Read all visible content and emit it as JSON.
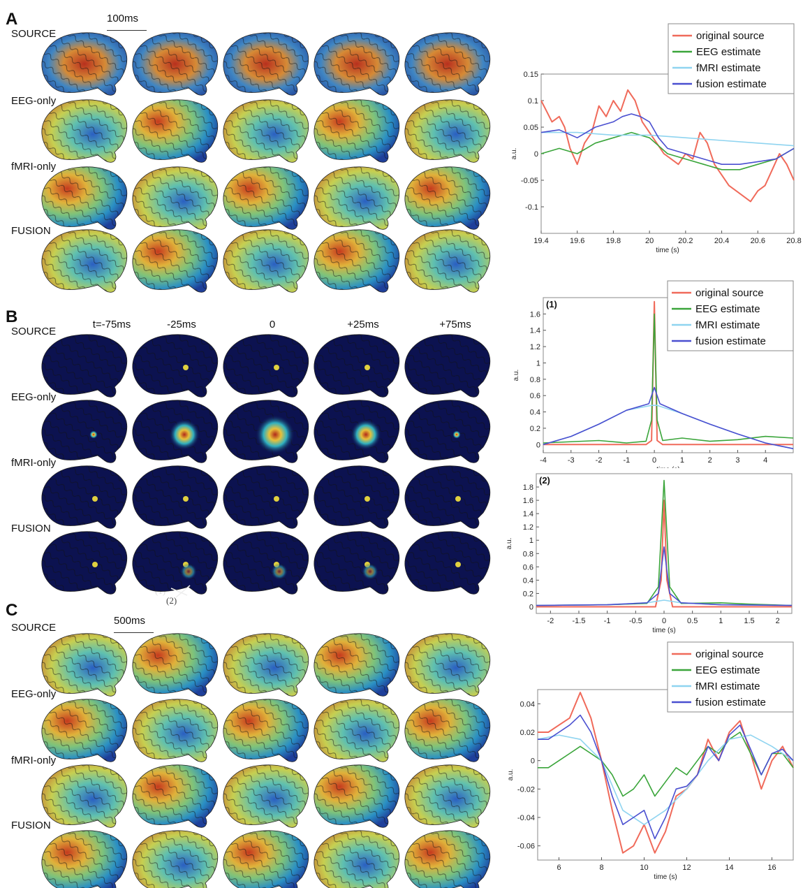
{
  "panels": {
    "A": {
      "letter": "A",
      "scale_label": "100ms",
      "rows": [
        "SOURCE",
        "EEG-only",
        "fMRI-only",
        "FUSION"
      ],
      "style": "mixed"
    },
    "B": {
      "letter": "B",
      "rows": [
        "SOURCE",
        "EEG-only",
        "fMRI-only",
        "FUSION"
      ],
      "time_labels": [
        "t=-75ms",
        "-25ms",
        "0",
        "+25ms",
        "+75ms"
      ],
      "arrow_labels": [
        "(1)",
        "(2)"
      ],
      "style": "dark"
    },
    "C": {
      "letter": "C",
      "scale_label": "500ms",
      "rows": [
        "SOURCE",
        "EEG-only",
        "fMRI-only",
        "FUSION"
      ],
      "style": "mixed"
    }
  },
  "legend_labels": [
    "original source",
    "EEG estimate",
    "fMRI estimate",
    "fusion estimate"
  ],
  "colors": {
    "original": "#f06a5a",
    "eeg": "#3aa53a",
    "fmri": "#8fd4f0",
    "fusion": "#4a4fd0",
    "brain_dark": "#0c1250"
  },
  "chart_data": [
    {
      "id": "A",
      "type": "line",
      "xlabel": "time (s)",
      "ylabel": "a.u.",
      "xlim": [
        19.4,
        20.8
      ],
      "ylim": [
        -0.15,
        0.15
      ],
      "xticks": [
        19.4,
        19.6,
        19.8,
        20,
        20.2,
        20.4,
        20.6,
        20.8
      ],
      "xtick_labels": [
        "19.4",
        "19.6",
        "19.8",
        "20",
        "20.2",
        "20.4",
        "20.6",
        "20.8"
      ],
      "yticks": [
        0.15,
        0.1,
        0.05,
        0,
        -0.05,
        -0.1
      ],
      "ytick_labels": [
        "0.15",
        "0.1",
        "0.05",
        "0",
        "-0.05",
        "-0.1"
      ],
      "legend": "top-right",
      "series": [
        {
          "name": "original source",
          "x": [
            19.4,
            19.43,
            19.46,
            19.5,
            19.53,
            19.56,
            19.6,
            19.64,
            19.68,
            19.72,
            19.76,
            19.8,
            19.84,
            19.88,
            19.92,
            19.96,
            20.0,
            20.04,
            20.08,
            20.12,
            20.16,
            20.2,
            20.24,
            20.28,
            20.32,
            20.36,
            20.4,
            20.44,
            20.48,
            20.52,
            20.56,
            20.6,
            20.64,
            20.68,
            20.72,
            20.76,
            20.8
          ],
          "y": [
            0.1,
            0.08,
            0.06,
            0.07,
            0.05,
            0.01,
            -0.02,
            0.02,
            0.04,
            0.09,
            0.07,
            0.1,
            0.08,
            0.12,
            0.1,
            0.06,
            0.04,
            0.02,
            0.0,
            -0.01,
            -0.02,
            0.0,
            -0.01,
            0.04,
            0.02,
            -0.02,
            -0.04,
            -0.06,
            -0.07,
            -0.08,
            -0.09,
            -0.07,
            -0.06,
            -0.03,
            0.0,
            -0.02,
            -0.05
          ]
        },
        {
          "name": "EEG estimate",
          "x": [
            19.4,
            19.5,
            19.6,
            19.7,
            19.8,
            19.9,
            20.0,
            20.1,
            20.2,
            20.3,
            20.4,
            20.5,
            20.6,
            20.7,
            20.8
          ],
          "y": [
            0.0,
            0.01,
            0.0,
            0.02,
            0.03,
            0.04,
            0.03,
            0.0,
            -0.01,
            -0.02,
            -0.03,
            -0.03,
            -0.02,
            -0.01,
            0.01
          ]
        },
        {
          "name": "fMRI estimate",
          "x": [
            19.4,
            19.6,
            19.8,
            20.0,
            20.2,
            20.4,
            20.6,
            20.8
          ],
          "y": [
            0.04,
            0.04,
            0.035,
            0.035,
            0.03,
            0.025,
            0.02,
            0.015
          ]
        },
        {
          "name": "fusion estimate",
          "x": [
            19.4,
            19.5,
            19.6,
            19.7,
            19.8,
            19.85,
            19.9,
            19.95,
            20.0,
            20.05,
            20.1,
            20.2,
            20.3,
            20.4,
            20.5,
            20.6,
            20.7,
            20.8
          ],
          "y": [
            0.04,
            0.045,
            0.03,
            0.05,
            0.06,
            0.07,
            0.075,
            0.07,
            0.06,
            0.03,
            0.01,
            0.0,
            -0.01,
            -0.02,
            -0.02,
            -0.015,
            -0.01,
            0.01
          ]
        }
      ]
    },
    {
      "id": "B1",
      "type": "line",
      "panel_label": "(1)",
      "xlabel": "time (s)",
      "ylabel": "a.u.",
      "xlim": [
        -4,
        5
      ],
      "ylim": [
        -0.1,
        1.8
      ],
      "xticks": [
        -4,
        -3,
        -2,
        -1,
        0,
        1,
        2,
        3,
        4
      ],
      "xtick_labels": [
        "-4",
        "-3",
        "-2",
        "-1",
        "0",
        "1",
        "2",
        "3",
        "4"
      ],
      "yticks": [
        0,
        0.2,
        0.4,
        0.6,
        0.8,
        1,
        1.2,
        1.4,
        1.6
      ],
      "ytick_labels": [
        "0",
        "0.2",
        "0.4",
        "0.6",
        "0.8",
        "1",
        "1.2",
        "1.4",
        "1.6"
      ],
      "legend": "top-right",
      "series": [
        {
          "name": "original source",
          "x": [
            -4,
            -0.3,
            -0.1,
            -0.05,
            0,
            0.05,
            0.1,
            0.3,
            5
          ],
          "y": [
            0,
            0,
            0.05,
            0.9,
            1.75,
            0.9,
            0.05,
            0,
            0
          ]
        },
        {
          "name": "EEG estimate",
          "x": [
            -4,
            -2,
            -1,
            -0.3,
            -0.1,
            0,
            0.1,
            0.3,
            1,
            2,
            3,
            4,
            5
          ],
          "y": [
            0.02,
            0.05,
            0.02,
            0.04,
            0.3,
            1.6,
            0.3,
            0.05,
            0.08,
            0.04,
            0.06,
            0.1,
            0.08
          ]
        },
        {
          "name": "fMRI estimate",
          "x": [
            -4,
            -3,
            -2,
            -1,
            -0.1,
            0.1,
            1,
            2,
            3,
            4,
            5
          ],
          "y": [
            0,
            0.1,
            0.25,
            0.42,
            0.48,
            0.48,
            0.38,
            0.25,
            0.13,
            0.02,
            -0.05
          ]
        },
        {
          "name": "fusion estimate",
          "x": [
            -4,
            -3,
            -2,
            -1,
            -0.2,
            0,
            0.2,
            1,
            2,
            3,
            4,
            5
          ],
          "y": [
            0,
            0.1,
            0.25,
            0.42,
            0.5,
            0.7,
            0.5,
            0.38,
            0.25,
            0.13,
            0.02,
            -0.05
          ]
        }
      ]
    },
    {
      "id": "B2",
      "type": "line",
      "panel_label": "(2)",
      "xlabel": "time (s)",
      "ylabel": "a.u.",
      "xlim": [
        -2.25,
        2.25
      ],
      "ylim": [
        -0.1,
        2.0
      ],
      "xticks": [
        -2,
        -1.5,
        -1,
        -0.5,
        0,
        0.5,
        1,
        1.5,
        2
      ],
      "xtick_labels": [
        "-2",
        "-1.5",
        "-1",
        "-0.5",
        "0",
        "0.5",
        "1",
        "1.5",
        "2"
      ],
      "yticks": [
        0,
        0.2,
        0.4,
        0.6,
        0.8,
        1,
        1.2,
        1.4,
        1.6,
        1.8
      ],
      "ytick_labels": [
        "0",
        "0.2",
        "0.4",
        "0.6",
        "0.8",
        "1",
        "1.2",
        "1.4",
        "1.6",
        "1.8"
      ],
      "series": [
        {
          "name": "original source",
          "x": [
            -2.25,
            -0.15,
            -0.05,
            0,
            0.05,
            0.15,
            2.25
          ],
          "y": [
            0,
            0,
            0.4,
            1.6,
            0.4,
            0,
            0
          ]
        },
        {
          "name": "EEG estimate",
          "x": [
            -2.25,
            -1,
            -0.3,
            -0.1,
            0,
            0.1,
            0.3,
            1,
            1.5,
            2.25
          ],
          "y": [
            0.02,
            0.03,
            0.05,
            0.3,
            1.9,
            0.3,
            0.05,
            0.06,
            0.04,
            0.02
          ]
        },
        {
          "name": "fMRI estimate",
          "x": [
            -2.25,
            -1,
            -0.3,
            0,
            0.3,
            1,
            2.25
          ],
          "y": [
            0.02,
            0.03,
            0.06,
            0.1,
            0.06,
            0.03,
            0.02
          ]
        },
        {
          "name": "fusion estimate",
          "x": [
            -2.25,
            -1,
            -0.3,
            -0.1,
            0,
            0.1,
            0.3,
            1,
            2.25
          ],
          "y": [
            0.02,
            0.03,
            0.06,
            0.2,
            0.9,
            0.2,
            0.06,
            0.03,
            0.02
          ]
        }
      ]
    },
    {
      "id": "C",
      "type": "line",
      "xlabel": "time (s)",
      "ylabel": "a.u.",
      "xlim": [
        5,
        17
      ],
      "ylim": [
        -0.07,
        0.05
      ],
      "xticks": [
        6,
        8,
        10,
        12,
        14,
        16
      ],
      "xtick_labels": [
        "6",
        "8",
        "10",
        "12",
        "14",
        "16"
      ],
      "yticks": [
        0.04,
        0.02,
        0,
        -0.02,
        -0.04,
        -0.06
      ],
      "ytick_labels": [
        "0.04",
        "0.02",
        "0",
        "-0.02",
        "-0.04",
        "-0.06"
      ],
      "legend": "top-right",
      "series": [
        {
          "name": "original source",
          "x": [
            5,
            5.5,
            6,
            6.5,
            7,
            7.5,
            8,
            8.5,
            9,
            9.5,
            10,
            10.5,
            11,
            11.5,
            12,
            12.5,
            13,
            13.5,
            14,
            14.5,
            15,
            15.5,
            16,
            16.5,
            17
          ],
          "y": [
            0.02,
            0.02,
            0.025,
            0.03,
            0.048,
            0.03,
            0.0,
            -0.035,
            -0.065,
            -0.06,
            -0.045,
            -0.065,
            -0.05,
            -0.025,
            -0.02,
            -0.01,
            0.015,
            0.0,
            0.02,
            0.028,
            0.005,
            -0.02,
            0.0,
            0.01,
            -0.005
          ]
        },
        {
          "name": "EEG estimate",
          "x": [
            5,
            5.5,
            6,
            6.5,
            7,
            7.5,
            8,
            8.5,
            9,
            9.5,
            10,
            10.5,
            11,
            11.5,
            12,
            12.5,
            13,
            13.5,
            14,
            14.5,
            15,
            15.5,
            16,
            16.5,
            17
          ],
          "y": [
            -0.005,
            -0.005,
            0.0,
            0.005,
            0.01,
            0.005,
            0.0,
            -0.01,
            -0.025,
            -0.02,
            -0.01,
            -0.025,
            -0.015,
            -0.005,
            -0.01,
            0.0,
            0.01,
            0.005,
            0.015,
            0.02,
            0.005,
            -0.01,
            0.005,
            0.005,
            -0.005
          ]
        },
        {
          "name": "fMRI estimate",
          "x": [
            5,
            6,
            7,
            8,
            9,
            10,
            11,
            12,
            13,
            14,
            15,
            16,
            17
          ],
          "y": [
            0.015,
            0.018,
            0.015,
            0.0,
            -0.035,
            -0.045,
            -0.035,
            -0.02,
            0.0,
            0.015,
            0.018,
            0.01,
            0.0
          ]
        },
        {
          "name": "fusion estimate",
          "x": [
            5,
            5.5,
            6,
            6.5,
            7,
            7.5,
            8,
            8.5,
            9,
            9.5,
            10,
            10.5,
            11,
            11.5,
            12,
            12.5,
            13,
            13.5,
            14,
            14.5,
            15,
            15.5,
            16,
            16.5,
            17
          ],
          "y": [
            0.015,
            0.015,
            0.02,
            0.025,
            0.032,
            0.02,
            0.0,
            -0.025,
            -0.045,
            -0.04,
            -0.035,
            -0.055,
            -0.04,
            -0.02,
            -0.018,
            -0.01,
            0.01,
            0.0,
            0.018,
            0.025,
            0.008,
            -0.01,
            0.005,
            0.008,
            0.0
          ]
        }
      ]
    }
  ]
}
